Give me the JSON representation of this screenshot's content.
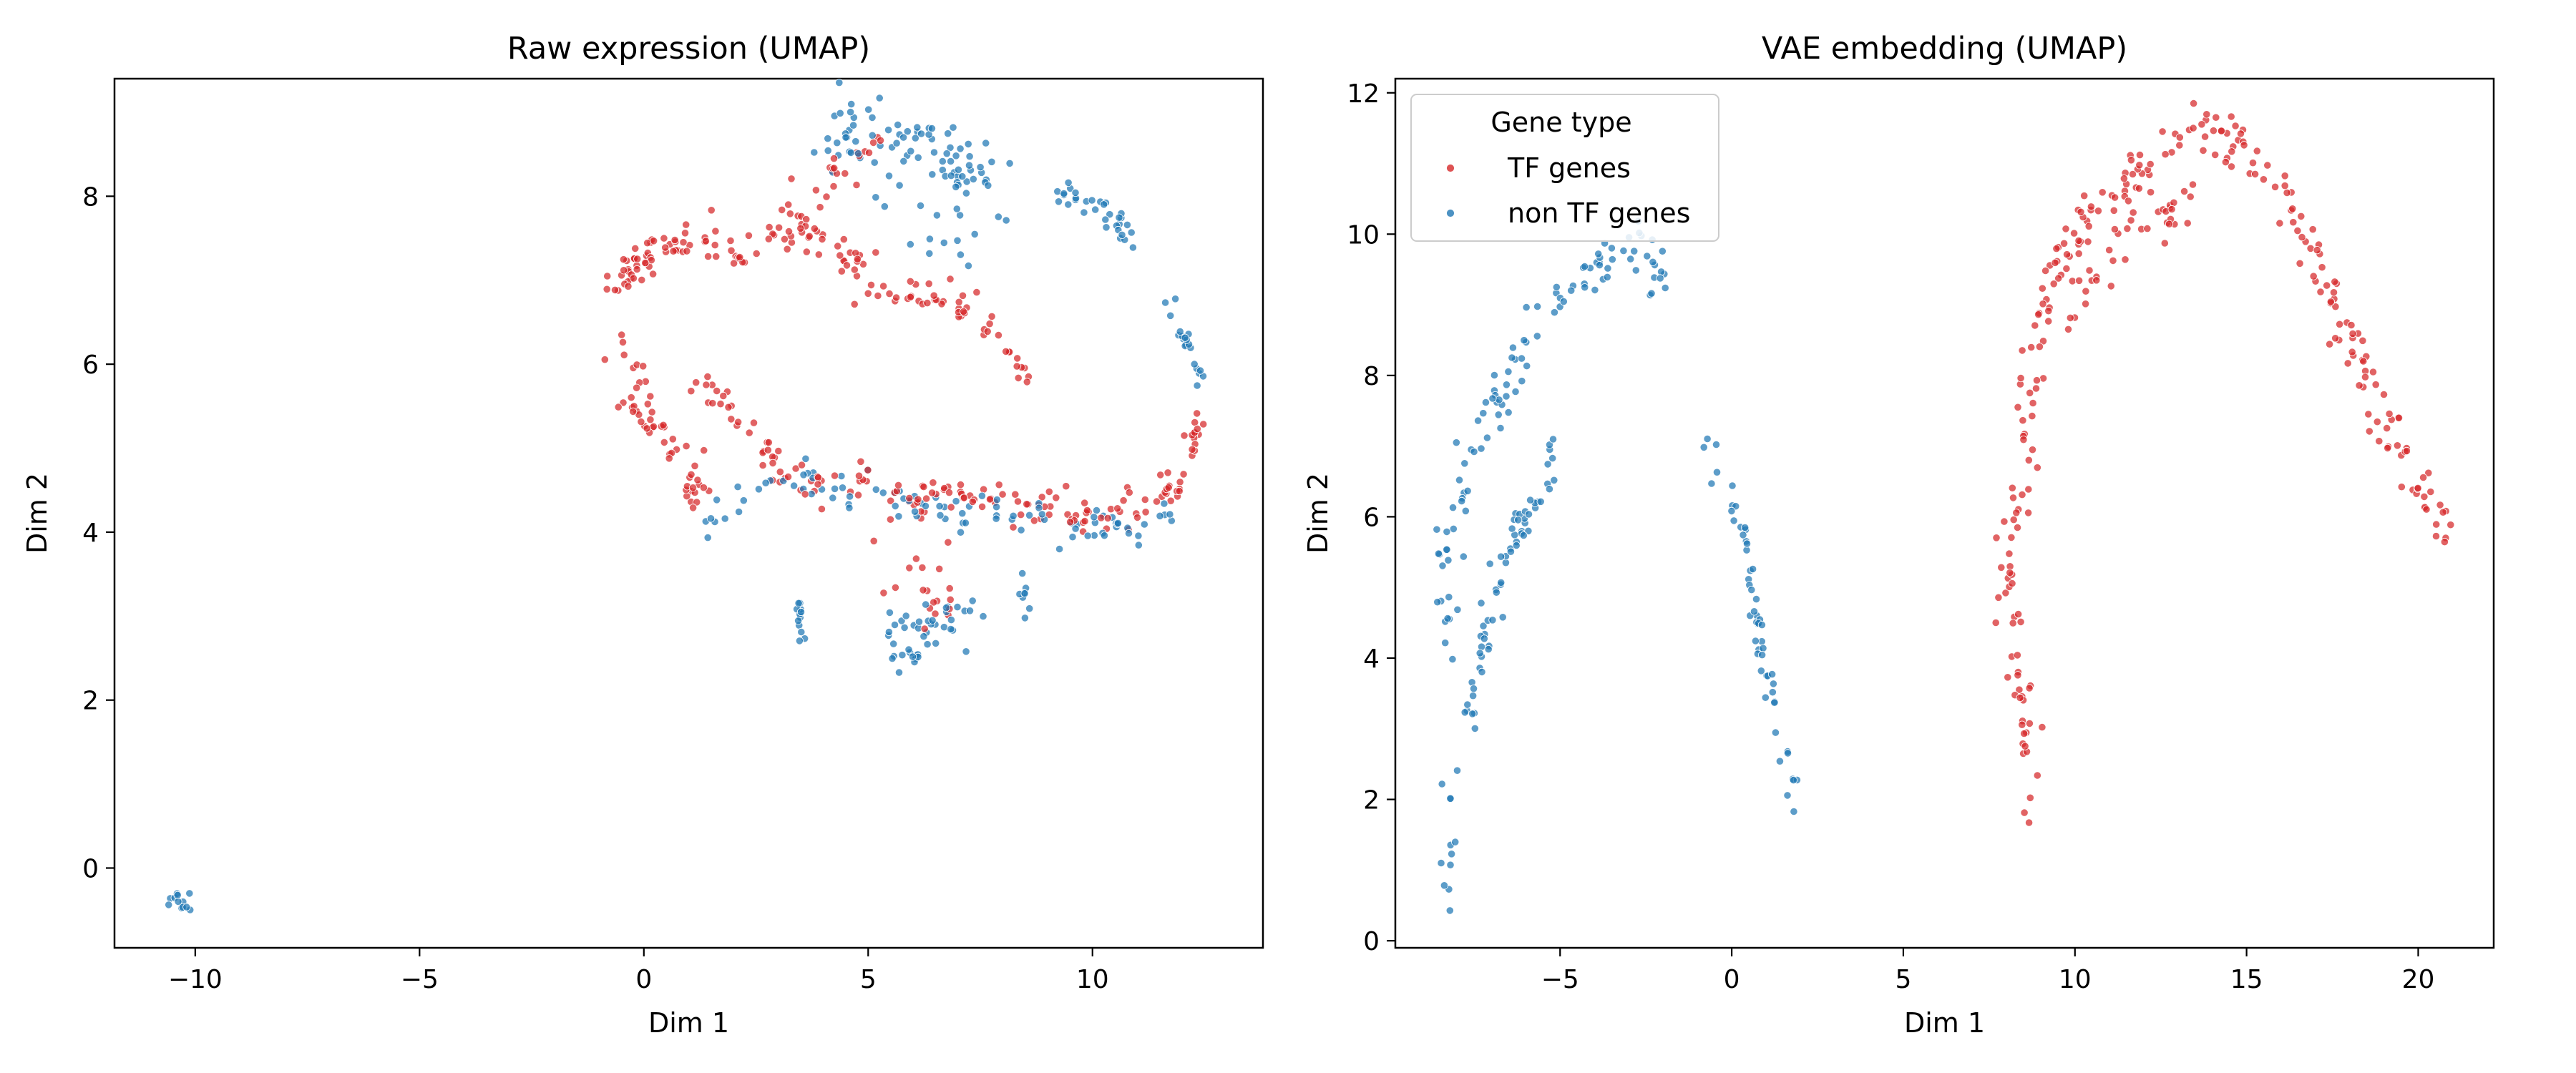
{
  "chart_data": [
    {
      "type": "scatter",
      "title": "Raw expression (UMAP)",
      "xlabel": "Dim 1",
      "ylabel": "Dim 2",
      "xlim": [
        -11.8,
        13.8
      ],
      "ylim": [
        -0.95,
        9.4
      ],
      "xticks": [
        -10,
        -5,
        0,
        5,
        10
      ],
      "yticks": [
        0,
        2,
        4,
        6,
        8
      ],
      "grid": false,
      "legend": null,
      "series": [
        {
          "key": "tf",
          "color": "#d62728",
          "clusters": [
            {
              "path": [
                [
                  -0.7,
                  6.9
                ],
                [
                  -0.2,
                  7.2
                ],
                [
                  0.5,
                  7.4
                ],
                [
                  1.0,
                  7.55
                ]
              ],
              "spread": 0.12,
              "n": 50
            },
            {
              "path": [
                [
                  1.3,
                  7.5
                ],
                [
                  2.2,
                  7.35
                ],
                [
                  3.0,
                  7.55
                ],
                [
                  3.8,
                  7.5
                ],
                [
                  4.6,
                  7.3
                ],
                [
                  5.2,
                  6.9
                ],
                [
                  6.0,
                  6.75
                ],
                [
                  7.2,
                  6.7
                ]
              ],
              "spread": 0.13,
              "n": 90
            },
            {
              "path": [
                [
                  7.2,
                  6.7
                ],
                [
                  7.8,
                  6.4
                ],
                [
                  8.3,
                  6.0
                ],
                [
                  8.6,
                  5.8
                ]
              ],
              "spread": 0.08,
              "n": 18
            },
            {
              "path": [
                [
                  3.2,
                  7.9
                ],
                [
                  4.2,
                  8.2
                ],
                [
                  5.0,
                  8.7
                ],
                [
                  5.6,
                  8.9
                ]
              ],
              "spread": 0.15,
              "n": 24
            },
            {
              "path": [
                [
                  -0.6,
                  6.2
                ],
                [
                  -0.3,
                  5.8
                ],
                [
                  0.0,
                  5.5
                ],
                [
                  0.5,
                  5.1
                ],
                [
                  1.0,
                  4.6
                ],
                [
                  1.5,
                  4.2
                ]
              ],
              "spread": 0.15,
              "n": 55
            },
            {
              "path": [
                [
                  1.2,
                  5.8
                ],
                [
                  1.7,
                  5.6
                ],
                [
                  2.2,
                  5.3
                ],
                [
                  2.6,
                  5.0
                ],
                [
                  3.0,
                  4.7
                ],
                [
                  4.0,
                  4.55
                ],
                [
                  5.5,
                  4.45
                ],
                [
                  7.0,
                  4.5
                ],
                [
                  8.5,
                  4.35
                ],
                [
                  10.0,
                  4.2
                ],
                [
                  11.0,
                  4.3
                ],
                [
                  11.6,
                  4.5
                ],
                [
                  12.1,
                  4.85
                ],
                [
                  12.4,
                  5.3
                ]
              ],
              "spread": 0.11,
              "n": 150
            },
            {
              "path": [
                [
                  5.5,
                  4.2
                ],
                [
                  6.0,
                  3.7
                ],
                [
                  6.5,
                  3.2
                ],
                [
                  7.0,
                  2.9
                ]
              ],
              "spread": 0.3,
              "n": 25
            },
            {
              "path": [
                [
                  12.2,
                  5.0
                ],
                [
                  12.5,
                  5.5
                ]
              ],
              "spread": 0.08,
              "n": 10
            }
          ]
        },
        {
          "key": "nontf",
          "color": "#1f77b4",
          "clusters": [
            {
              "path": [
                [
                  4.0,
                  8.7
                ],
                [
                  4.8,
                  8.9
                ],
                [
                  5.5,
                  8.7
                ],
                [
                  6.2,
                  8.5
                ],
                [
                  7.0,
                  8.4
                ],
                [
                  7.8,
                  8.2
                ]
              ],
              "spread": 0.22,
              "n": 85
            },
            {
              "path": [
                [
                  5.5,
                  7.9
                ],
                [
                  6.5,
                  7.6
                ],
                [
                  7.3,
                  7.3
                ]
              ],
              "spread": 0.3,
              "n": 15
            },
            {
              "path": [
                [
                  9.2,
                  8.0
                ],
                [
                  9.8,
                  7.95
                ],
                [
                  10.4,
                  7.7
                ],
                [
                  11.0,
                  7.4
                ]
              ],
              "spread": 0.1,
              "n": 32
            },
            {
              "path": [
                [
                  11.6,
                  6.8
                ],
                [
                  12.0,
                  6.4
                ],
                [
                  12.3,
                  6.0
                ],
                [
                  12.5,
                  5.6
                ]
              ],
              "spread": 0.07,
              "n": 20
            },
            {
              "path": [
                [
                  1.3,
                  4.0
                ],
                [
                  2.0,
                  4.4
                ],
                [
                  3.0,
                  4.6
                ],
                [
                  4.0,
                  4.5
                ],
                [
                  5.5,
                  4.4
                ],
                [
                  7.0,
                  4.25
                ],
                [
                  8.5,
                  4.2
                ],
                [
                  10.0,
                  4.1
                ],
                [
                  11.3,
                  4.0
                ],
                [
                  11.8,
                  4.3
                ]
              ],
              "spread": 0.12,
              "n": 95
            },
            {
              "path": [
                [
                  5.4,
                  2.9
                ],
                [
                  5.8,
                  2.6
                ],
                [
                  5.9,
                  2.3
                ],
                [
                  6.3,
                  2.9
                ],
                [
                  7.3,
                  2.9
                ]
              ],
              "spread": 0.14,
              "n": 45
            },
            {
              "path": [
                [
                  3.45,
                  3.2
                ],
                [
                  3.5,
                  2.75
                ]
              ],
              "spread": 0.04,
              "n": 12
            },
            {
              "path": [
                [
                  8.2,
                  3.4
                ],
                [
                  8.6,
                  3.2
                ]
              ],
              "spread": 0.1,
              "n": 8
            },
            {
              "path": [
                [
                  -10.6,
                  -0.35
                ],
                [
                  -10.1,
                  -0.45
                ]
              ],
              "spread": 0.07,
              "n": 12
            }
          ]
        }
      ]
    },
    {
      "type": "scatter",
      "title": "VAE embedding (UMAP)",
      "xlabel": "Dim 1",
      "ylabel": "Dim 2",
      "xlim": [
        -9.8,
        22.2
      ],
      "ylim": [
        -0.1,
        12.2
      ],
      "xticks": [
        -5,
        0,
        5,
        10,
        15,
        20
      ],
      "yticks": [
        0,
        2,
        4,
        6,
        8,
        10,
        12
      ],
      "grid": false,
      "legend": {
        "title": "Gene type",
        "position": "top-left",
        "entries": [
          {
            "label": "TF genes",
            "series": "tf"
          },
          {
            "label": "non TF genes",
            "series": "nontf"
          }
        ]
      },
      "series": [
        {
          "key": "tf",
          "color": "#d62728",
          "clusters": [
            {
              "path": [
                [
                  8.6,
                  1.7
                ],
                [
                  8.6,
                  3.0
                ],
                [
                  8.2,
                  4.0
                ],
                [
                  8.0,
                  5.5
                ],
                [
                  8.5,
                  6.5
                ],
                [
                  8.8,
                  8.5
                ],
                [
                  9.5,
                  9.6
                ],
                [
                  10.5,
                  10.4
                ],
                [
                  12.0,
                  11.0
                ],
                [
                  13.4,
                  11.55
                ]
              ],
              "spread": 0.18,
              "n": 140
            },
            {
              "path": [
                [
                  13.4,
                  11.55
                ],
                [
                  14.8,
                  11.3
                ],
                [
                  15.8,
                  10.6
                ],
                [
                  16.8,
                  9.9
                ],
                [
                  17.6,
                  9.0
                ],
                [
                  18.5,
                  8.0
                ],
                [
                  19.2,
                  7.2
                ],
                [
                  20.1,
                  6.3
                ],
                [
                  20.9,
                  5.55
                ]
              ],
              "spread": 0.18,
              "n": 120
            },
            {
              "path": [
                [
                  9.8,
                  8.5
                ],
                [
                  10.8,
                  9.6
                ],
                [
                  12.0,
                  10.2
                ],
                [
                  13.3,
                  10.4
                ]
              ],
              "spread": 0.2,
              "n": 40
            }
          ]
        },
        {
          "key": "nontf",
          "color": "#1f77b4",
          "clusters": [
            {
              "path": [
                [
                  -8.3,
                  0.55
                ],
                [
                  -8.2,
                  2.0
                ],
                [
                  -7.7,
                  3.0
                ],
                [
                  -7.2,
                  4.2
                ],
                [
                  -6.9,
                  5.1
                ],
                [
                  -6.0,
                  6.0
                ],
                [
                  -5.0,
                  7.0
                ]
              ],
              "spread": 0.15,
              "n": 75
            },
            {
              "path": [
                [
                  -8.2,
                  4.0
                ],
                [
                  -8.3,
                  5.5
                ],
                [
                  -7.6,
                  6.8
                ],
                [
                  -6.7,
                  7.8
                ],
                [
                  -5.8,
                  8.6
                ],
                [
                  -4.8,
                  9.2
                ],
                [
                  -3.6,
                  9.75
                ],
                [
                  -2.5,
                  9.8
                ],
                [
                  -2.0,
                  9.2
                ]
              ],
              "spread": 0.17,
              "n": 105
            },
            {
              "path": [
                [
                  -0.6,
                  7.2
                ],
                [
                  -0.4,
                  6.4
                ],
                [
                  0.3,
                  6.0
                ],
                [
                  0.5,
                  5.0
                ],
                [
                  1.0,
                  3.8
                ],
                [
                  1.4,
                  3.0
                ],
                [
                  1.9,
                  2.0
                ]
              ],
              "spread": 0.1,
              "n": 55
            }
          ]
        }
      ]
    }
  ]
}
